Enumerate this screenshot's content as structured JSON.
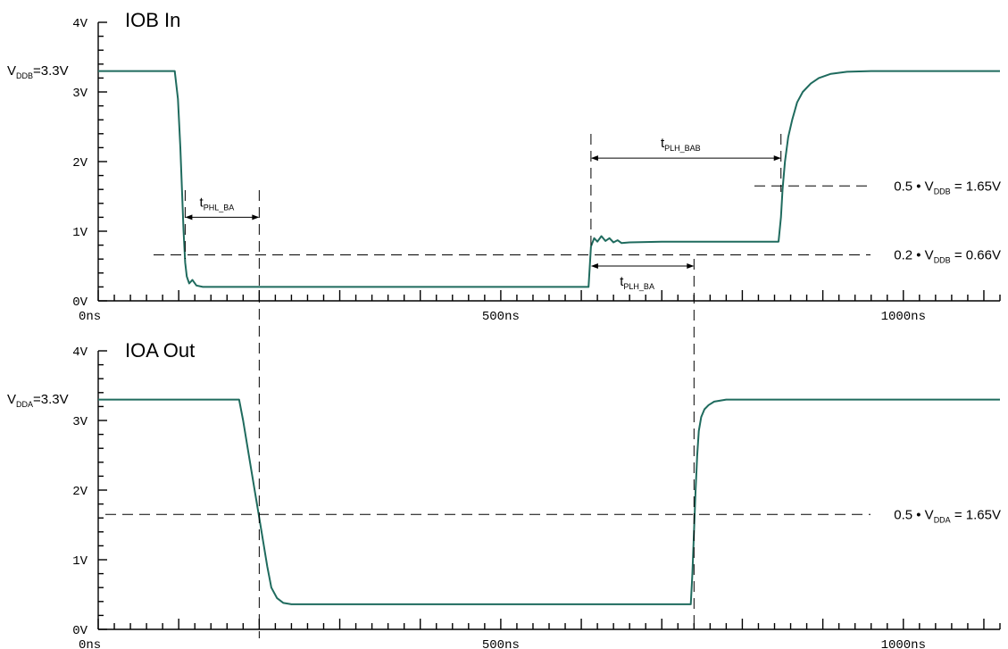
{
  "chart_data": [
    {
      "type": "line",
      "title": "IOB  In",
      "xlabel": "",
      "ylabel": "",
      "x_ticks": [
        "0ns",
        "500ns",
        "1000ns"
      ],
      "y_ticks": [
        "0V",
        "1V",
        "2V",
        "3V",
        "4V"
      ],
      "xlim": [
        0,
        1120
      ],
      "ylim": [
        0,
        4
      ],
      "reference_label": "V|DDB|=3.3V",
      "series": [
        {
          "x": [
            0,
            95,
            99,
            102,
            104,
            106,
            108,
            110,
            113,
            117,
            122,
            130,
            200,
            300,
            400,
            500,
            600,
            609,
            612,
            616,
            620,
            625,
            630,
            635,
            640,
            645,
            650,
            660,
            700,
            760,
            800,
            845,
            848,
            850,
            853,
            857,
            862,
            868,
            875,
            885,
            895,
            910,
            930,
            960,
            1000,
            1050,
            1120
          ],
          "y": [
            3.3,
            3.3,
            2.9,
            2.2,
            1.6,
            1.0,
            0.55,
            0.35,
            0.25,
            0.3,
            0.22,
            0.2,
            0.2,
            0.2,
            0.2,
            0.2,
            0.2,
            0.2,
            0.78,
            0.9,
            0.85,
            0.93,
            0.86,
            0.9,
            0.84,
            0.87,
            0.83,
            0.84,
            0.85,
            0.85,
            0.85,
            0.85,
            1.2,
            1.6,
            2.0,
            2.35,
            2.6,
            2.85,
            3.0,
            3.12,
            3.2,
            3.26,
            3.29,
            3.3,
            3.3,
            3.3,
            3.3
          ]
        }
      ],
      "h_references": [
        {
          "y": 1.65,
          "label": "0.5 • V|DDB| = 1.65V"
        },
        {
          "y": 0.66,
          "label": "0.2 • V|DDB| = 0.66V"
        }
      ],
      "intervals": [
        {
          "label": "t|PHL_BA|",
          "x_start": 108,
          "x_end": 200,
          "y": 1.2
        },
        {
          "label": "t|PLH_BAB|",
          "x_start": 612,
          "x_end": 848,
          "y": 2.05
        },
        {
          "label": "t|PLH_BA|",
          "x_start": 612,
          "x_end": 740,
          "y": 0.5
        }
      ]
    },
    {
      "type": "line",
      "title": "IOA  Out",
      "xlabel": "",
      "ylabel": "",
      "x_ticks": [
        "0ns",
        "500ns",
        "1000ns"
      ],
      "y_ticks": [
        "0V",
        "1V",
        "2V",
        "3V",
        "4V"
      ],
      "xlim": [
        0,
        1120
      ],
      "ylim": [
        0,
        4
      ],
      "reference_label": "V|DDA|=3.3V",
      "series": [
        {
          "x": [
            0,
            175,
            180,
            190,
            200,
            205,
            210,
            215,
            222,
            230,
            240,
            260,
            300,
            400,
            500,
            600,
            700,
            736,
            738,
            740,
            742,
            744,
            746,
            749,
            753,
            758,
            765,
            780,
            850,
            950,
            1050,
            1120
          ],
          "y": [
            3.3,
            3.3,
            3.0,
            2.3,
            1.6,
            1.25,
            0.9,
            0.6,
            0.45,
            0.38,
            0.36,
            0.36,
            0.36,
            0.36,
            0.36,
            0.36,
            0.36,
            0.36,
            0.8,
            1.4,
            2.0,
            2.5,
            2.85,
            3.05,
            3.16,
            3.22,
            3.27,
            3.3,
            3.3,
            3.3,
            3.3,
            3.3
          ]
        }
      ],
      "h_references": [
        {
          "y": 1.65,
          "label": "0.5 • V|DDA| = 1.65V"
        }
      ],
      "intervals": []
    }
  ],
  "style": {
    "trace_color": "#1f6b5e",
    "axis_color": "#000000"
  },
  "shared_verticals": [
    {
      "x": 200,
      "from": 1.65,
      "to_panel": 1,
      "to_y": 0
    },
    {
      "x": 740,
      "from": 0.5,
      "to_panel": 1,
      "to_y": 0
    }
  ]
}
